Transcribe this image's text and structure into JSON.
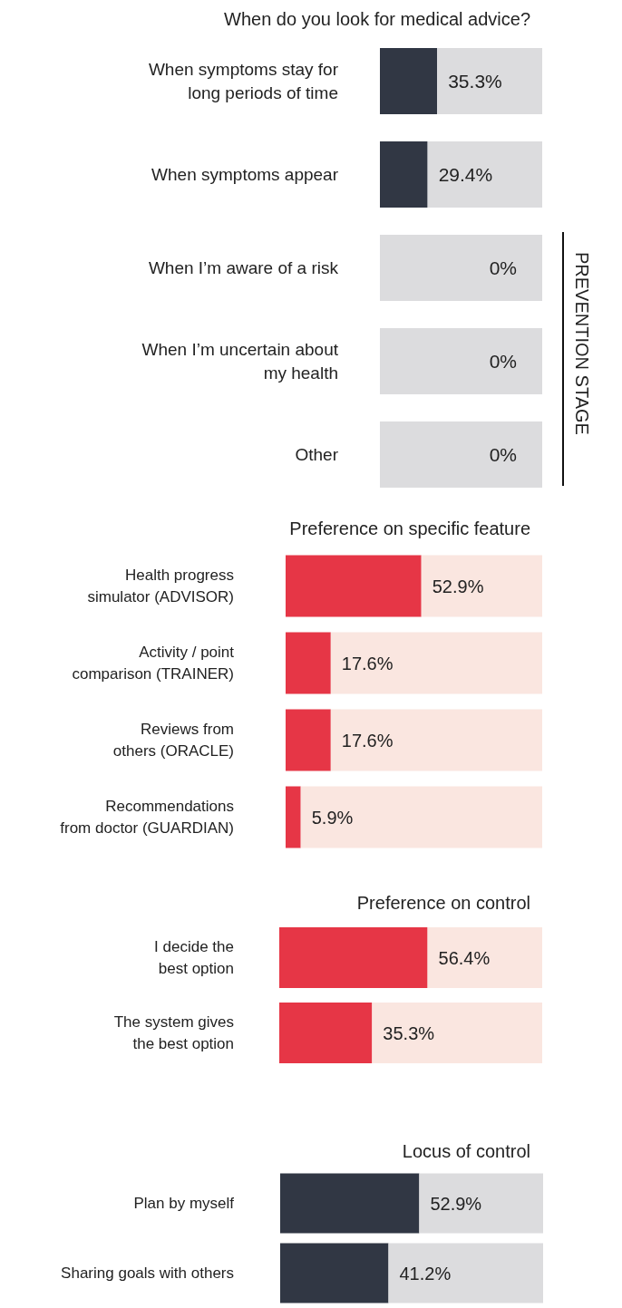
{
  "chart_data": [
    {
      "type": "bar",
      "orientation": "horizontal",
      "stacked": true,
      "title": "When do you look for medical advice?",
      "categories": [
        "When symptoms stay for\nlong periods of time",
        "When symptoms appear",
        "When I’m aware of a risk",
        "When I’m uncertain about\nmy health",
        "Other"
      ],
      "xlim": [
        0,
        100
      ],
      "tick_labels": "y",
      "annotations": [
        "PREVENTION STAGE"
      ],
      "series": [
        {
          "color": "#313744",
          "values": [
            35.3,
            29.4,
            0,
            0,
            0
          ],
          "value_labels": [
            "35.3%",
            "29.4%",
            "0%",
            "0%",
            "0%"
          ]
        },
        {
          "color": "#dcdcde",
          "values": [
            64.7,
            70.6,
            100,
            100,
            100
          ]
        }
      ]
    },
    {
      "type": "bar",
      "orientation": "horizontal",
      "stacked": true,
      "title": "Preference on specific feature",
      "categories": [
        "Health progress\nsimulator (ADVISOR)",
        "Activity / point\ncomparison (TRAINER)",
        "Reviews from\nothers (ORACLE)",
        "Recommendations\nfrom doctor (GUARDIAN)"
      ],
      "xlim": [
        0,
        100
      ],
      "tick_labels": "y",
      "series": [
        {
          "color": "#e63646",
          "values": [
            52.9,
            17.6,
            17.6,
            5.9
          ],
          "value_labels": [
            "52.9%",
            "17.6%",
            "17.6%",
            "5.9%"
          ]
        },
        {
          "color": "#fae6e0",
          "values": [
            47.1,
            82.4,
            82.4,
            94.1
          ]
        }
      ]
    },
    {
      "type": "bar",
      "orientation": "horizontal",
      "stacked": true,
      "title": "Preference on control",
      "categories": [
        "I decide the\nbest option",
        "The system gives\nthe best option"
      ],
      "xlim": [
        0,
        100
      ],
      "tick_labels": "y",
      "series": [
        {
          "color": "#e63646",
          "values": [
            56.4,
            35.3
          ],
          "value_labels": [
            "56.4%",
            "35.3%"
          ]
        },
        {
          "color": "#fae6e0",
          "values": [
            43.6,
            64.7
          ]
        }
      ]
    },
    {
      "type": "bar",
      "orientation": "horizontal",
      "stacked": true,
      "title": "Locus of control",
      "categories": [
        "Plan by myself",
        "Sharing goals with others"
      ],
      "xlim": [
        0,
        100
      ],
      "tick_labels": "y",
      "series": [
        {
          "color": "#313744",
          "values": [
            52.9,
            41.2
          ],
          "value_labels": [
            "52.9%",
            "41.2%"
          ]
        },
        {
          "color": "#dcdcde",
          "values": [
            47.1,
            58.8
          ]
        }
      ]
    }
  ]
}
